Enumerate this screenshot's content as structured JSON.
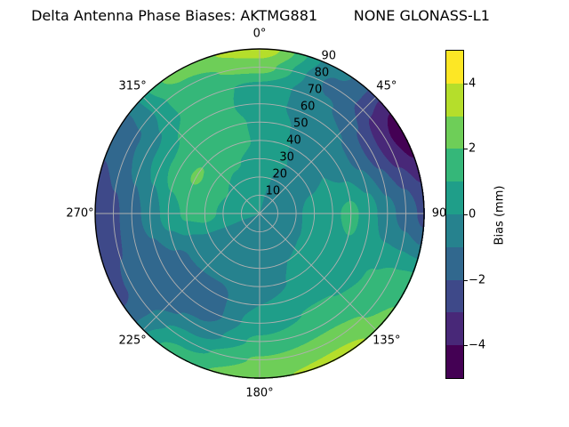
{
  "title": "Delta Antenna Phase Biases: AKTMG881        NONE GLONASS-L1",
  "chart_data": {
    "type": "heatmap",
    "projection": "polar",
    "description": "Sky plot of antenna phase bias: azimuth clockwise from North (top), zenith angle radial 0 (center) to 90 (edge); filled contours, viridis colormap, 1 mm contour levels from -5 to 5 mm",
    "title": "Delta Antenna Phase Biases: AKTMG881        NONE GLONASS-L1",
    "theta_axis": {
      "zero_location": "top",
      "direction": "clockwise",
      "ticks": [
        {
          "angle_deg": 0,
          "label": "0°"
        },
        {
          "angle_deg": 45,
          "label": "45°"
        },
        {
          "angle_deg": 90,
          "label": "90"
        },
        {
          "angle_deg": 135,
          "label": "135°"
        },
        {
          "angle_deg": 180,
          "label": "180°"
        },
        {
          "angle_deg": 225,
          "label": "225°"
        },
        {
          "angle_deg": 270,
          "label": "270°"
        },
        {
          "angle_deg": 315,
          "label": "315°"
        }
      ]
    },
    "r_axis": {
      "min": 0,
      "max": 90,
      "ticks": [
        10,
        20,
        30,
        40,
        50,
        60,
        70,
        80,
        90
      ],
      "label_angle_deg": 22.5
    },
    "colorbar": {
      "label": "Bias (mm)",
      "min": -5,
      "max": 5,
      "level_step": 1,
      "ticks": [
        {
          "value": 4,
          "label": "4"
        },
        {
          "value": 2,
          "label": "2"
        },
        {
          "value": 0,
          "label": "0"
        },
        {
          "value": -2,
          "label": "−2"
        },
        {
          "value": -4,
          "label": "−4"
        }
      ],
      "palette": [
        "#440154",
        "#482878",
        "#3e4989",
        "#31688e",
        "#26828e",
        "#1f9e89",
        "#35b779",
        "#6ece58",
        "#b5de2b",
        "#fde725"
      ]
    },
    "grid": {
      "azimuth_deg": [
        0,
        30,
        60,
        90,
        120,
        150,
        180,
        210,
        240,
        270,
        300,
        330
      ],
      "zenith_deg": [
        0,
        10,
        20,
        30,
        40,
        50,
        60,
        70,
        80,
        90
      ],
      "bias_mm": [
        [
          0.1,
          0.2,
          0.4,
          0.7,
          0.9,
          0.8,
          0.5,
          0.8,
          2.4,
          3.6
        ],
        [
          -0.1,
          -0.2,
          -0.2,
          0.0,
          -0.1,
          -0.3,
          -0.6,
          -0.9,
          -1.2,
          -0.8
        ],
        [
          -0.1,
          -0.2,
          -0.2,
          -0.1,
          0.0,
          -0.4,
          -1.2,
          -2.4,
          -3.8,
          -4.6
        ],
        [
          -0.1,
          -0.2,
          -0.1,
          0.3,
          0.8,
          1.3,
          0.5,
          -0.7,
          -1.4,
          -2.3
        ],
        [
          -0.1,
          -0.2,
          -0.1,
          0.1,
          0.4,
          0.6,
          0.8,
          1.1,
          1.5,
          1.9
        ],
        [
          -0.1,
          -0.2,
          -0.2,
          0.0,
          0.1,
          0.4,
          1.1,
          1.7,
          2.5,
          3.4
        ],
        [
          -0.1,
          -0.3,
          -0.5,
          -0.6,
          -0.4,
          0.0,
          0.5,
          1.2,
          2.1,
          2.8
        ],
        [
          -0.1,
          -0.2,
          -0.4,
          -0.6,
          -0.9,
          -1.3,
          -1.5,
          -0.8,
          0.6,
          1.6
        ],
        [
          0.0,
          -0.1,
          -0.2,
          -0.4,
          -0.8,
          -1.2,
          -1.6,
          -1.8,
          -1.9,
          -2.2
        ],
        [
          0.1,
          0.3,
          0.8,
          1.4,
          1.2,
          0.5,
          -0.6,
          -1.4,
          -2.2,
          -2.9
        ],
        [
          0.1,
          0.5,
          1.0,
          1.7,
          2.1,
          1.6,
          0.6,
          -0.4,
          -1.2,
          -1.6
        ],
        [
          0.1,
          0.4,
          0.7,
          1.1,
          1.6,
          1.9,
          1.7,
          1.4,
          1.7,
          2.5
        ]
      ]
    },
    "grid_lines": {
      "color": "#b0b0b0",
      "r_step": 10,
      "theta_step_deg": 45
    }
  },
  "colors": {
    "background": "#ffffff",
    "outline": "#000000",
    "text": "#000000"
  }
}
